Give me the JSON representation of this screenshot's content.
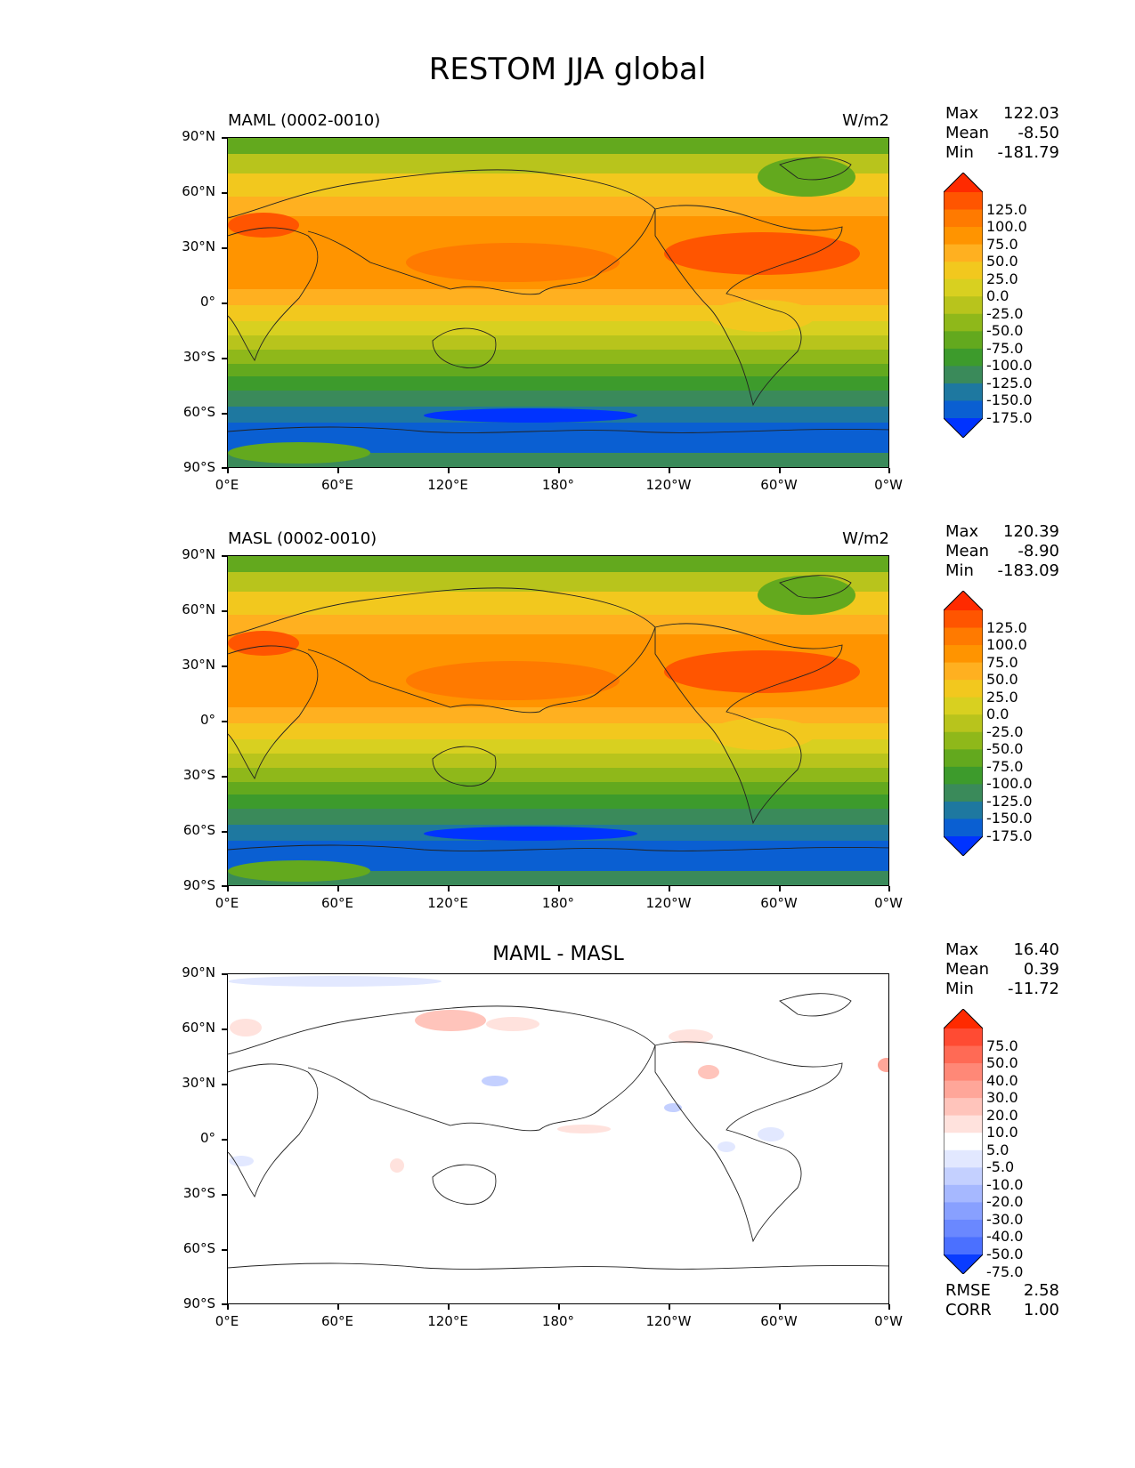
{
  "title": "RESTOM JJA global",
  "axes": {
    "lat_labels": [
      "90°N",
      "60°N",
      "30°N",
      "0°",
      "30°S",
      "60°S",
      "90°S"
    ],
    "lon_labels": [
      "0°E",
      "60°E",
      "120°E",
      "180°",
      "120°W",
      "60°W",
      "0°W"
    ]
  },
  "panels": [
    {
      "title_left": "MAML (0002-0010)",
      "title_right": "W/m2",
      "title_center": "",
      "stats": {
        "max_label": "Max",
        "max": "122.03",
        "mean_label": "Mean",
        "mean": "-8.50",
        "min_label": "Min",
        "min": "-181.79"
      },
      "colorbar_labels": [
        "125.0",
        "100.0",
        "75.0",
        "50.0",
        "25.0",
        "0.0",
        "-25.0",
        "-50.0",
        "-75.0",
        "-100.0",
        "-125.0",
        "-150.0",
        "-175.0"
      ],
      "colorbar_colors": [
        "#ff2a00",
        "#ff5500",
        "#ff7a00",
        "#ff9400",
        "#ffb020",
        "#f2c81e",
        "#d8d020",
        "#b8c41c",
        "#8fb81a",
        "#63a91e",
        "#3d9b2c",
        "#3a8a5a",
        "#1e78a0",
        "#0a5fd2",
        "#0033ff"
      ]
    },
    {
      "title_left": "MASL (0002-0010)",
      "title_right": "W/m2",
      "title_center": "",
      "stats": {
        "max_label": "Max",
        "max": "120.39",
        "mean_label": "Mean",
        "mean": "-8.90",
        "min_label": "Min",
        "min": "-183.09"
      },
      "colorbar_labels": [
        "125.0",
        "100.0",
        "75.0",
        "50.0",
        "25.0",
        "0.0",
        "-25.0",
        "-50.0",
        "-75.0",
        "-100.0",
        "-125.0",
        "-150.0",
        "-175.0"
      ],
      "colorbar_colors": [
        "#ff2a00",
        "#ff5500",
        "#ff7a00",
        "#ff9400",
        "#ffb020",
        "#f2c81e",
        "#d8d020",
        "#b8c41c",
        "#8fb81a",
        "#63a91e",
        "#3d9b2c",
        "#3a8a5a",
        "#1e78a0",
        "#0a5fd2",
        "#0033ff"
      ]
    },
    {
      "title_left": "",
      "title_right": "",
      "title_center": "MAML - MASL",
      "stats": {
        "max_label": "Max",
        "max": "16.40",
        "mean_label": "Mean",
        "mean": "0.39",
        "min_label": "Min",
        "min": "-11.72"
      },
      "colorbar_labels": [
        "75.0",
        "50.0",
        "40.0",
        "30.0",
        "20.0",
        "10.0",
        "5.0",
        "-5.0",
        "-10.0",
        "-20.0",
        "-30.0",
        "-40.0",
        "-50.0",
        "-75.0"
      ],
      "colorbar_colors": [
        "#ff2a00",
        "#ff4b33",
        "#ff6a55",
        "#ff8877",
        "#ffa699",
        "#ffc4bb",
        "#ffe2dd",
        "#ffffff",
        "#e2e8ff",
        "#c4d0ff",
        "#a6b8ff",
        "#88a0ff",
        "#6a88ff",
        "#4b70ff",
        "#0a3cff"
      ],
      "rmse_label": "RMSE",
      "rmse": "2.58",
      "corr_label": "CORR",
      "corr": "1.00"
    }
  ]
}
